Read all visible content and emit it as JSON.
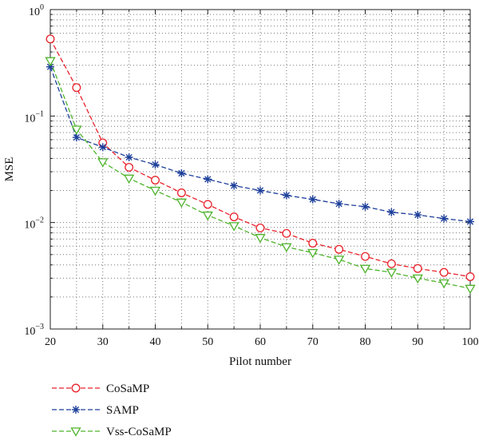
{
  "chart_data": {
    "type": "line",
    "title": "",
    "xlabel": "Pilot number",
    "ylabel": "MSE",
    "xlim": [
      20,
      100
    ],
    "ylim": [
      0.001,
      1
    ],
    "yscale": "log",
    "grid": true,
    "legend_position": "bottom-left, below plot",
    "x_ticks": [
      "20",
      "30",
      "40",
      "50",
      "60",
      "70",
      "80",
      "90",
      "100"
    ],
    "y_ticks": [
      {
        "base": "10",
        "exp": "0"
      },
      {
        "base": "10",
        "exp": "−1"
      },
      {
        "base": "10",
        "exp": "−2"
      },
      {
        "base": "10",
        "exp": "−3"
      }
    ],
    "x": [
      20,
      25,
      30,
      35,
      40,
      45,
      50,
      55,
      60,
      65,
      70,
      75,
      80,
      85,
      90,
      95,
      100
    ],
    "series": [
      {
        "name": "CoSaMP",
        "color": "#e8212a",
        "marker": "circle",
        "values": [
          0.53,
          0.185,
          0.056,
          0.033,
          0.025,
          0.019,
          0.0148,
          0.0113,
          0.0089,
          0.0079,
          0.0064,
          0.0056,
          0.0048,
          0.0041,
          0.0037,
          0.0034,
          0.0031
        ]
      },
      {
        "name": "SAMP",
        "color": "#1d3f9a",
        "marker": "asterisk",
        "values": [
          0.29,
          0.063,
          0.051,
          0.041,
          0.035,
          0.029,
          0.0255,
          0.0222,
          0.02,
          0.018,
          0.0165,
          0.015,
          0.0141,
          0.0125,
          0.0118,
          0.0109,
          0.0102
        ]
      },
      {
        "name": "Vss-CoSaMP",
        "color": "#4db32b",
        "marker": "triangle-down",
        "values": [
          0.33,
          0.075,
          0.037,
          0.026,
          0.02,
          0.0155,
          0.0117,
          0.0093,
          0.0072,
          0.0059,
          0.0052,
          0.0045,
          0.0037,
          0.0034,
          0.003,
          0.0027,
          0.0024
        ]
      }
    ]
  }
}
